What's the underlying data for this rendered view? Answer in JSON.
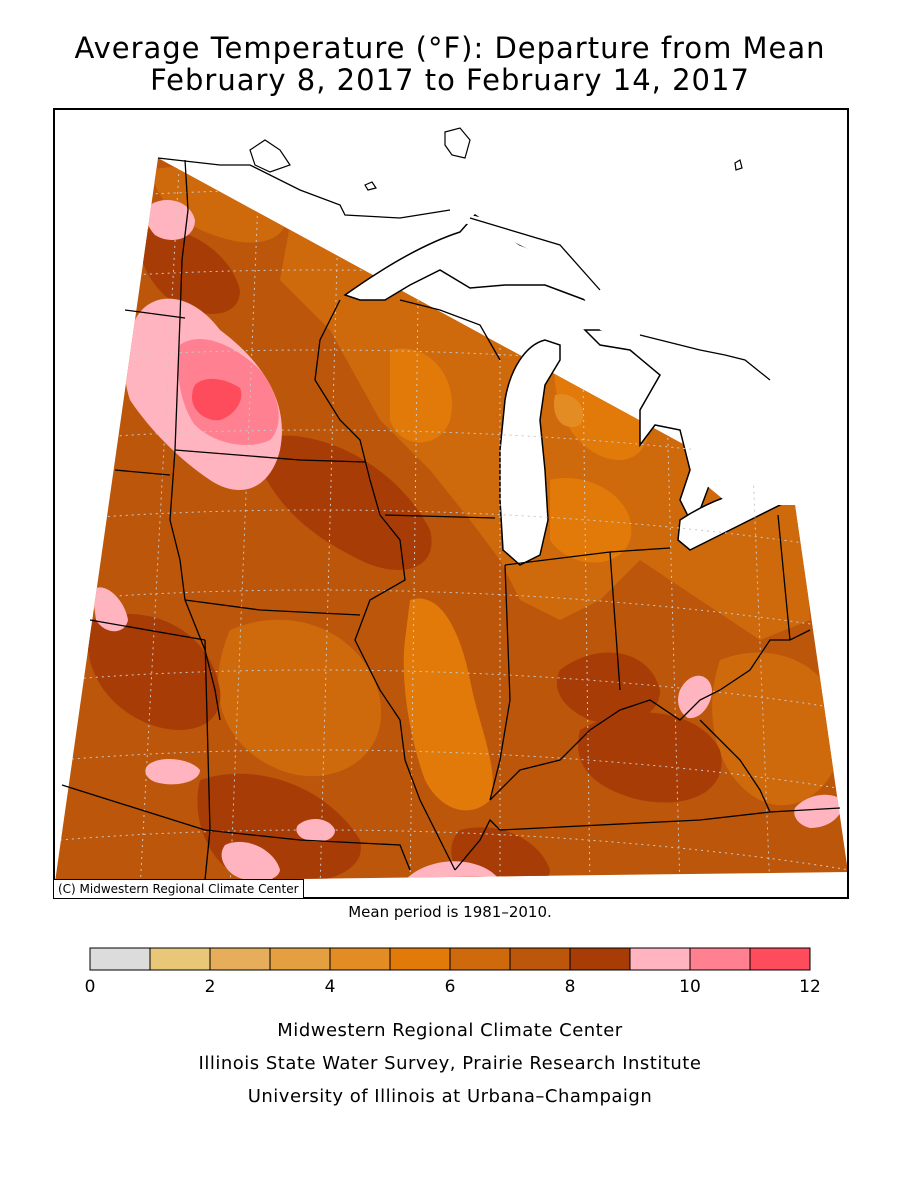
{
  "header": {
    "title_line1": "Average Temperature (°F): Departure from Mean",
    "title_line2": "February 8, 2017 to February 14, 2017"
  },
  "map": {
    "credit": "(C) Midwestern Regional Climate Center",
    "mean_period": "Mean period is 1981–2010."
  },
  "legend": {
    "bins": [
      {
        "low": 0,
        "high": 1,
        "color": "#dcdcdc"
      },
      {
        "low": 1,
        "high": 2,
        "color": "#e8c878"
      },
      {
        "low": 2,
        "high": 3,
        "color": "#e6ae5a"
      },
      {
        "low": 3,
        "high": 4,
        "color": "#e4a040"
      },
      {
        "low": 4,
        "high": 5,
        "color": "#e48c24"
      },
      {
        "low": 5,
        "high": 6,
        "color": "#e27a0a"
      },
      {
        "low": 6,
        "high": 7,
        "color": "#cf6a0c"
      },
      {
        "low": 7,
        "high": 8,
        "color": "#bc560a"
      },
      {
        "low": 8,
        "high": 9,
        "color": "#a83c06"
      },
      {
        "low": 9,
        "high": 10,
        "color": "#ffb4c0"
      },
      {
        "low": 10,
        "high": 11,
        "color": "#ff8090"
      },
      {
        "low": 11,
        "high": 12,
        "color": "#ff4c5c"
      }
    ],
    "tick_labels": [
      "0",
      "2",
      "4",
      "6",
      "8",
      "10",
      "12"
    ]
  },
  "footer": {
    "line1": "Midwestern Regional Climate Center",
    "line2": "Illinois State Water Survey, Prairie Research Institute",
    "line3": "University of Illinois at Urbana–Champaign"
  },
  "colors": {
    "lake": "#ffffff",
    "boundary": "#000000",
    "grid": "#c8c8c8"
  }
}
